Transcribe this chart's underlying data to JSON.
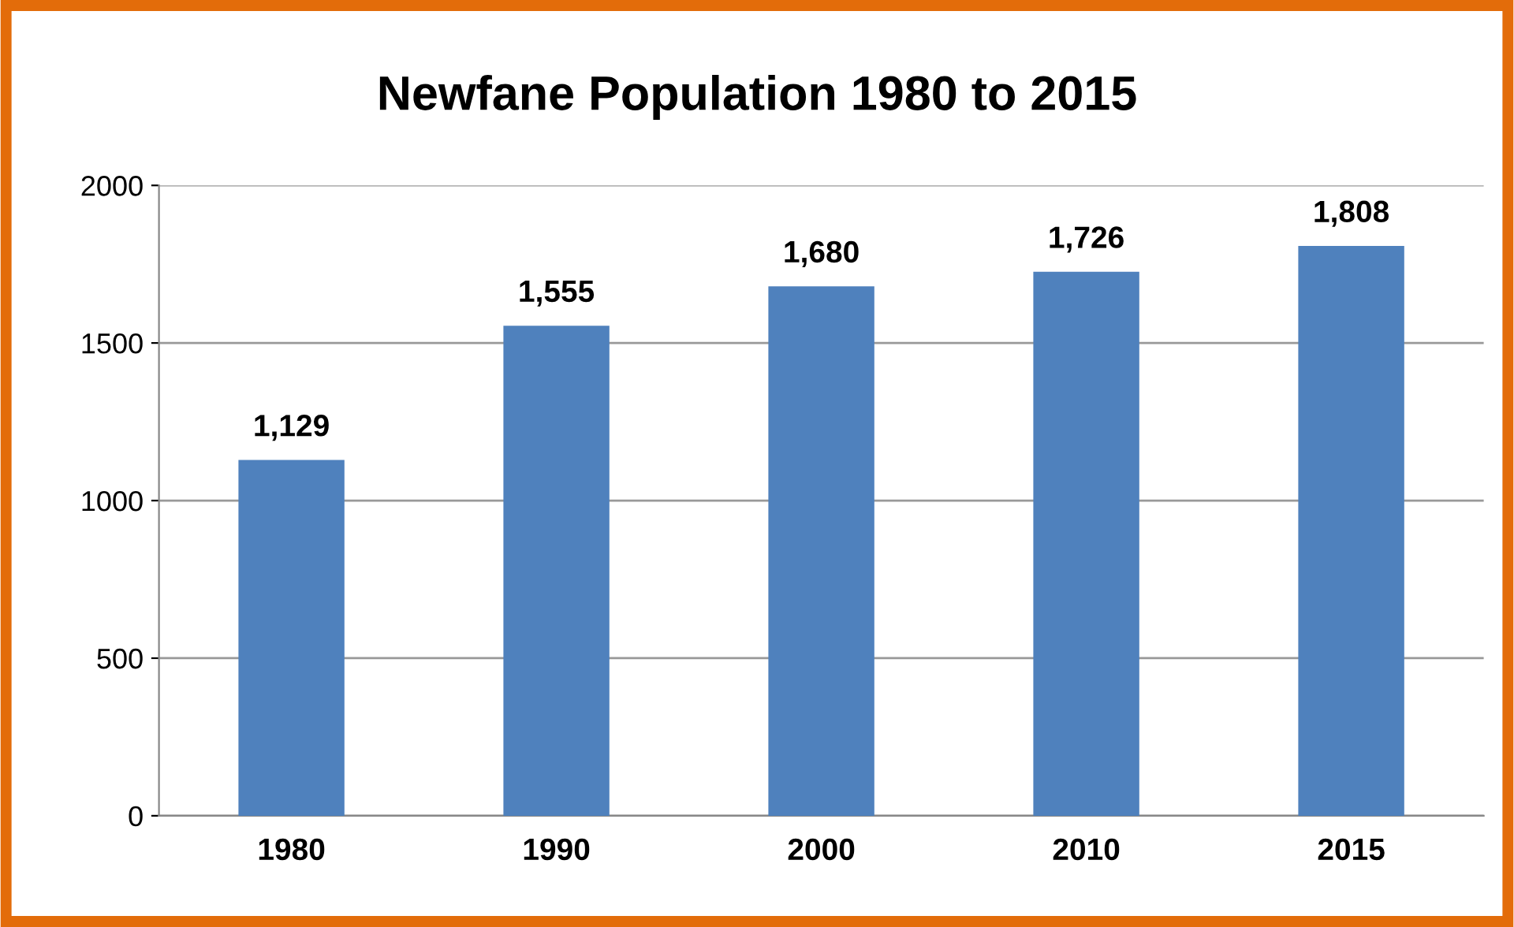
{
  "chart_data": {
    "type": "bar",
    "title": "Newfane Population 1980 to 2015",
    "categories": [
      "1980",
      "1990",
      "2000",
      "2010",
      "2015"
    ],
    "values": [
      1129,
      1555,
      1680,
      1726,
      1808
    ],
    "value_labels": [
      "1,129",
      "1,555",
      "1,680",
      "1,726",
      "1,808"
    ],
    "color": "#4f81bd",
    "ylim": [
      0,
      2000
    ],
    "yticks": [
      0,
      500,
      1000,
      1500,
      2000
    ],
    "grid": "y"
  }
}
